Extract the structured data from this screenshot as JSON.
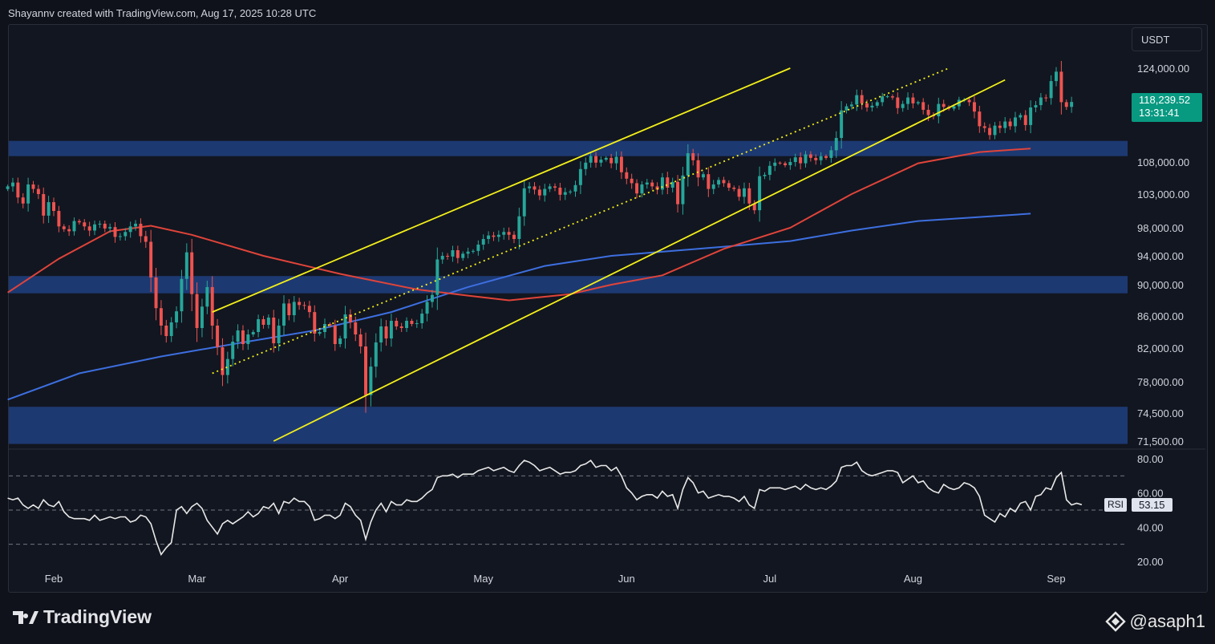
{
  "header": {
    "text": "Shayannv created with TradingView.com, Aug 17, 2025 10:28 UTC"
  },
  "currency": "USDT",
  "price_label": {
    "price": "118,239.52",
    "countdown": "13:31:41",
    "color": "#089981"
  },
  "rsi_label": {
    "name": "RSI",
    "value": "53.15"
  },
  "brand": "TradingView",
  "watermark": "@asaph1",
  "colors": {
    "up": "#26a69a",
    "down": "#ef5350",
    "zone": "#1e3d7a",
    "ma_short": "#e0443a",
    "ma_long": "#3d6fe0",
    "channel": "#f4f01a",
    "rsi": "#e8e8e8"
  },
  "chart_data": {
    "type": "candlestick",
    "x_ticks": [
      "Feb",
      "Mar",
      "Apr",
      "May",
      "Jun",
      "Jul",
      "Aug",
      "Sep"
    ],
    "x_tick_index": [
      9,
      37,
      65,
      93,
      121,
      149,
      177,
      205
    ],
    "price_ticks": [
      124000,
      108000,
      103000,
      98000,
      94000,
      90000,
      86000,
      82000,
      78000,
      74500,
      71500
    ],
    "price_tick_labels": [
      "124,000.00",
      "108,000.00",
      "103,000.00",
      "98,000.00",
      "94,000.00",
      "90,000.00",
      "86,000.00",
      "82,000.00",
      "78,000.00",
      "74,500.00",
      "71,500.00"
    ],
    "ylim": [
      71500,
      124000
    ],
    "rsi_ticks": [
      "80.00",
      "60.00",
      "40.00",
      "20.00"
    ],
    "rsi_levels": [
      70,
      50,
      30
    ],
    "zones": [
      [
        109000,
        111600
      ],
      [
        88900,
        91200
      ],
      [
        71200,
        75200
      ]
    ],
    "channel": {
      "upper": [
        [
          40,
          86500
        ],
        [
          153,
          124000
        ]
      ],
      "lower": [
        [
          52,
          71500
        ],
        [
          195,
          122000
        ]
      ],
      "mid": [
        [
          40,
          79000
        ],
        [
          184,
          124000
        ]
      ]
    },
    "closes": [
      104200,
      104800,
      102500,
      101600,
      104500,
      103800,
      103000,
      99800,
      101800,
      100500,
      98200,
      97800,
      97500,
      99000,
      98800,
      98200,
      97600,
      98500,
      98600,
      97900,
      98100,
      96700,
      96800,
      97400,
      98200,
      98600,
      96800,
      96000,
      91000,
      87000,
      84800,
      83500,
      85200,
      86600,
      90800,
      94500,
      88800,
      84500,
      87200,
      89700,
      84800,
      82100,
      78800,
      80700,
      82800,
      84200,
      82500,
      83700,
      84000,
      85600,
      84900,
      85800,
      82600,
      84800,
      87600,
      86100,
      87800,
      87400,
      87300,
      86500,
      83800,
      84000,
      85000,
      84800,
      82500,
      83200,
      86200,
      85200,
      83700,
      82200,
      76500,
      79800,
      82700,
      84700,
      83200,
      85400,
      84700,
      84500,
      85400,
      85000,
      85100,
      86300,
      87800,
      88700,
      93500,
      94000,
      93900,
      94800,
      93700,
      94300,
      94600,
      94700,
      95600,
      96400,
      96900,
      96700,
      97000,
      97400,
      97000,
      96400,
      99700,
      103900,
      104200,
      103700,
      102800,
      103800,
      104200,
      104000,
      102900,
      103300,
      103400,
      104400,
      106900,
      107900,
      109000,
      107900,
      108400,
      108700,
      107800,
      108900,
      106400,
      105400,
      104700,
      103100,
      104500,
      104800,
      104200,
      103700,
      105600,
      104000,
      104900,
      101500,
      105900,
      109500,
      108300,
      105600,
      106100,
      103800,
      104500,
      105200,
      104700,
      104000,
      103800,
      102600,
      103900,
      101600,
      100600,
      105800,
      106000,
      107400,
      107900,
      107800,
      107500,
      108000,
      108800,
      107800,
      109300,
      108700,
      108300,
      109000,
      108700,
      110000,
      112100,
      116800,
      117500,
      117800,
      119400,
      118000,
      117300,
      117600,
      118200,
      119200,
      119200,
      119000,
      117200,
      117900,
      119000,
      118000,
      118200,
      116900,
      116000,
      115800,
      117900,
      117400,
      117100,
      117500,
      118600,
      118600,
      118200,
      116600,
      114100,
      113800,
      112600,
      114200,
      113800,
      114900,
      114100,
      115600,
      116000,
      114300,
      117300,
      117700,
      119000,
      118900,
      121800,
      123400,
      118200,
      117400,
      118239
    ],
    "rsi": [
      57,
      56,
      57,
      53,
      51,
      53,
      51,
      56,
      53,
      52,
      55,
      49,
      46,
      45,
      45,
      45,
      44,
      47,
      44,
      45,
      46,
      45,
      46,
      46,
      43,
      44,
      47,
      46,
      42,
      32,
      24,
      28,
      31,
      50,
      52,
      48,
      52,
      54,
      51,
      44,
      40,
      36,
      42,
      44,
      42,
      44,
      46,
      49,
      46,
      48,
      52,
      51,
      54,
      48,
      55,
      54,
      57,
      55,
      55,
      52,
      44,
      45,
      47,
      47,
      45,
      47,
      54,
      52,
      47,
      44,
      33,
      43,
      50,
      54,
      49,
      55,
      53,
      53,
      56,
      55,
      55,
      57,
      60,
      62,
      69,
      70,
      70,
      71,
      69,
      71,
      71,
      71,
      73,
      74,
      75,
      73,
      74,
      75,
      73,
      72,
      76,
      79,
      78,
      76,
      73,
      74,
      75,
      73,
      71,
      72,
      72,
      73,
      76,
      77,
      79,
      75,
      76,
      76,
      73,
      75,
      70,
      63,
      60,
      56,
      58,
      59,
      59,
      57,
      61,
      58,
      59,
      51,
      62,
      69,
      66,
      60,
      61,
      57,
      58,
      59,
      58,
      58,
      57,
      55,
      58,
      53,
      51,
      62,
      61,
      63,
      63,
      63,
      62,
      63,
      64,
      62,
      65,
      63,
      62,
      63,
      62,
      64,
      67,
      75,
      76,
      76,
      78,
      73,
      71,
      70,
      71,
      72,
      73,
      73,
      72,
      66,
      68,
      70,
      66,
      67,
      63,
      61,
      60,
      65,
      63,
      62,
      63,
      66,
      65,
      63,
      58,
      47,
      45,
      43,
      48,
      46,
      51,
      49,
      54,
      55,
      50,
      58,
      59,
      63,
      62,
      69,
      72,
      56,
      53,
      54,
      53.15
    ],
    "ma_short": {
      "pts": [
        [
          0,
          89000
        ],
        [
          10,
          93600
        ],
        [
          20,
          97500
        ],
        [
          28,
          98300
        ],
        [
          36,
          97000
        ],
        [
          50,
          94000
        ],
        [
          65,
          91500
        ],
        [
          80,
          89400
        ],
        [
          90,
          88600
        ],
        [
          98,
          88000
        ],
        [
          110,
          88800
        ],
        [
          118,
          90000
        ],
        [
          128,
          91300
        ],
        [
          140,
          95000
        ],
        [
          153,
          98000
        ],
        [
          165,
          103000
        ],
        [
          178,
          107800
        ],
        [
          190,
          109700
        ],
        [
          200,
          110300
        ]
      ]
    },
    "ma_long": {
      "pts": [
        [
          0,
          76000
        ],
        [
          14,
          79000
        ],
        [
          30,
          81000
        ],
        [
          45,
          82600
        ],
        [
          60,
          84200
        ],
        [
          75,
          86500
        ],
        [
          90,
          89700
        ],
        [
          105,
          92600
        ],
        [
          118,
          94000
        ],
        [
          135,
          95000
        ],
        [
          153,
          96100
        ],
        [
          165,
          97600
        ],
        [
          178,
          99000
        ],
        [
          200,
          100100
        ]
      ]
    }
  }
}
